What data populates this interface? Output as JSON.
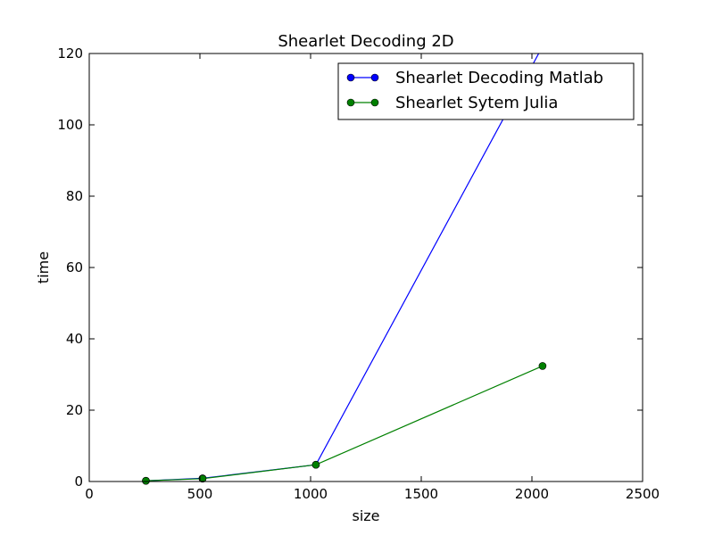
{
  "chart_data": {
    "type": "line",
    "title": "Shearlet Decoding 2D",
    "xlabel": "size",
    "ylabel": "time",
    "xlim": [
      0,
      2500
    ],
    "ylim": [
      0,
      120
    ],
    "xticks": [
      0,
      500,
      1000,
      1500,
      2000,
      2500
    ],
    "yticks": [
      0,
      20,
      40,
      60,
      80,
      100,
      120
    ],
    "grid": false,
    "legend_position": "top-right",
    "series": [
      {
        "name": "Shearlet Decoding Matlab",
        "color": "#0000ff",
        "x": [
          256,
          512,
          1024,
          2048
        ],
        "y": [
          0.2,
          0.9,
          4.7,
          122
        ]
      },
      {
        "name": "Shearlet Sytem Julia",
        "color": "#008000",
        "x": [
          256,
          512,
          1024,
          2048
        ],
        "y": [
          0.2,
          0.8,
          4.7,
          32.4
        ]
      }
    ]
  }
}
